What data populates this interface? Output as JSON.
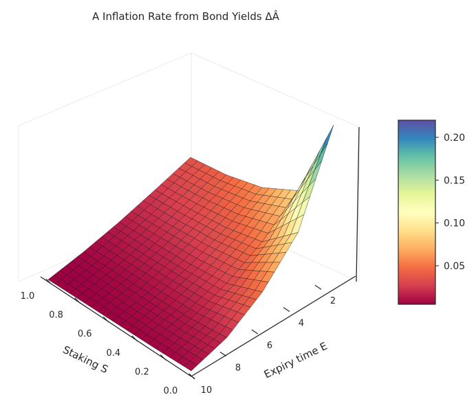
{
  "chart_data": {
    "type": "surface3d",
    "title": "A Inflation Rate from Bond Yields ΔÂ",
    "xlabel": "Staking S",
    "ylabel": "Expiry time E",
    "x_ticks": [
      "0.0",
      "0.2",
      "0.4",
      "0.6",
      "0.8",
      "1.0"
    ],
    "y_ticks": [
      "2",
      "4",
      "6",
      "8",
      "10"
    ],
    "xlim": [
      0,
      1
    ],
    "ylim": [
      1,
      10
    ],
    "zlim": [
      0,
      0.22
    ],
    "colormap": "Spectral",
    "colorbar": {
      "ticks": [
        "0.05",
        "0.10",
        "0.15",
        "0.20"
      ],
      "range": [
        0.005,
        0.22
      ]
    },
    "grid": {
      "x_values": [
        0.0,
        0.25,
        0.5,
        0.75,
        1.0
      ],
      "y_values": [
        1.0,
        3.25,
        5.5,
        7.75,
        10.0
      ],
      "z": [
        [
          0.22,
          0.09,
          0.06,
          0.044,
          0.035
        ],
        [
          0.1,
          0.052,
          0.038,
          0.03,
          0.024
        ],
        [
          0.05,
          0.028,
          0.021,
          0.017,
          0.014
        ],
        [
          0.02,
          0.013,
          0.01,
          0.008,
          0.007
        ],
        [
          0.008,
          0.006,
          0.005,
          0.004,
          0.003
        ]
      ]
    }
  }
}
